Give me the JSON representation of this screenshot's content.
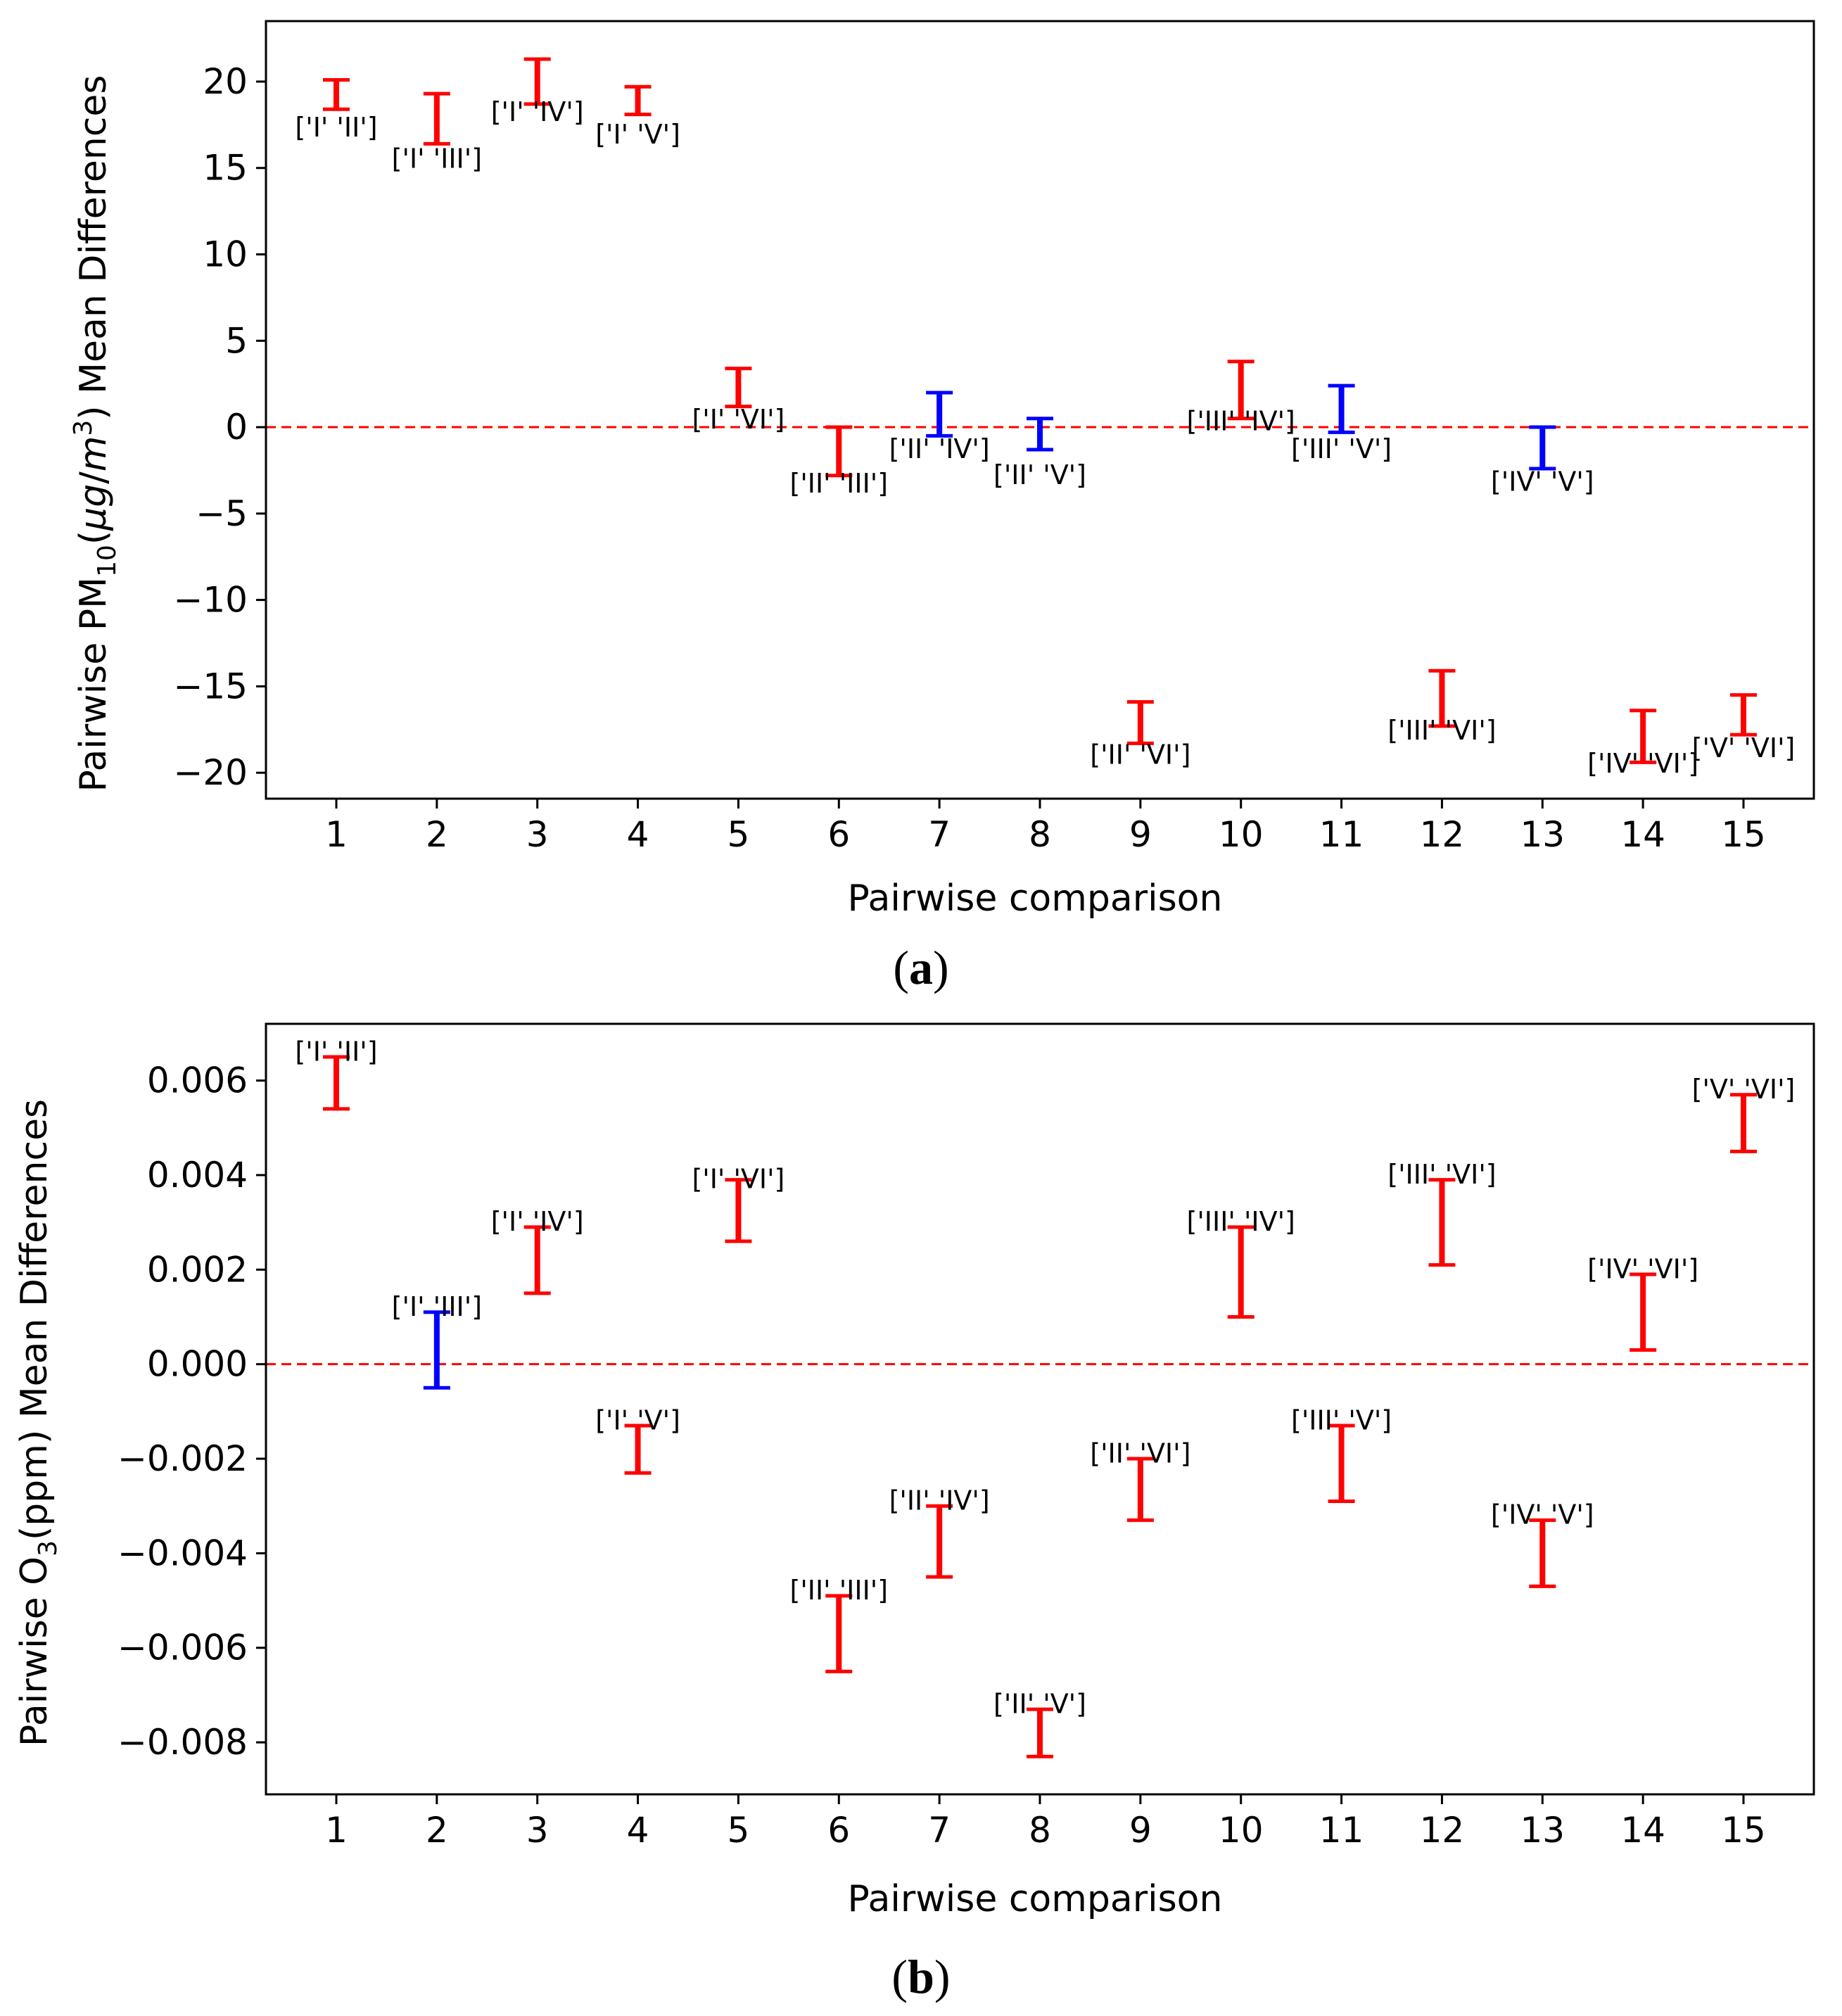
{
  "chart_data": [
    {
      "type": "errorbar",
      "panel_label": "a",
      "xlabel": "Pairwise comparison",
      "ylabel": {
        "prefix": "Pairwise PM",
        "subscript": "10",
        "unit_open": "(",
        "unit_mu": "μg",
        "unit_slash": "/",
        "unit_m": "m",
        "unit_exp": "3",
        "unit_close": ")",
        "suffix": " Mean Differences"
      },
      "ylim": [
        -21.5,
        23.5
      ],
      "yticks": [
        20,
        15,
        10,
        5,
        0,
        -5,
        -10,
        -15,
        -20
      ],
      "ytick_labels": [
        "20",
        "15",
        "10",
        "5",
        "0",
        "−5",
        "−10",
        "−15",
        "−20"
      ],
      "xlim": [
        0.3,
        15.7
      ],
      "xticks": [
        1,
        2,
        3,
        4,
        5,
        6,
        7,
        8,
        9,
        10,
        11,
        12,
        13,
        14,
        15
      ],
      "xtick_labels": [
        "1",
        "2",
        "3",
        "4",
        "5",
        "6",
        "7",
        "8",
        "9",
        "10",
        "11",
        "12",
        "13",
        "14",
        "15"
      ],
      "reference_line": 0,
      "series": [
        {
          "x": 1,
          "low": 18.4,
          "high": 20.1,
          "color": "#ff0000",
          "label": "['I' 'II']",
          "label_at": 17.3
        },
        {
          "x": 2,
          "low": 16.4,
          "high": 19.3,
          "color": "#ff0000",
          "label": "['I' 'III']",
          "label_at": 15.5
        },
        {
          "x": 3,
          "low": 18.7,
          "high": 21.3,
          "color": "#ff0000",
          "label": "['I' 'IV']",
          "label_at": 18.2
        },
        {
          "x": 4,
          "low": 18.1,
          "high": 19.7,
          "color": "#ff0000",
          "label": "['I' 'V']",
          "label_at": 16.9
        },
        {
          "x": 5,
          "low": 1.2,
          "high": 3.4,
          "color": "#ff0000",
          "label": "['I' 'VI']",
          "label_at": 0.4
        },
        {
          "x": 6,
          "low": -2.8,
          "high": 0.0,
          "color": "#ff0000",
          "label": "['II' 'III']",
          "label_at": -3.3
        },
        {
          "x": 7,
          "low": -0.5,
          "high": 2.0,
          "color": "#0000ff",
          "label": "['II' 'IV']",
          "label_at": -1.3
        },
        {
          "x": 8,
          "low": -1.3,
          "high": 0.5,
          "color": "#0000ff",
          "label": "['II' 'V']",
          "label_at": -2.8
        },
        {
          "x": 9,
          "low": -18.3,
          "high": -15.9,
          "color": "#ff0000",
          "label": "['II' 'VI']",
          "label_at": -19.0
        },
        {
          "x": 10,
          "low": 0.5,
          "high": 3.8,
          "color": "#ff0000",
          "label": "['III' 'IV']",
          "label_at": 0.3
        },
        {
          "x": 11,
          "low": -0.3,
          "high": 2.4,
          "color": "#0000ff",
          "label": "['III' 'V']",
          "label_at": -1.3
        },
        {
          "x": 12,
          "low": -17.3,
          "high": -14.1,
          "color": "#ff0000",
          "label": "['III' 'VI']",
          "label_at": -17.6
        },
        {
          "x": 13,
          "low": -2.4,
          "high": 0.0,
          "color": "#0000ff",
          "label": "['IV' 'V']",
          "label_at": -3.2
        },
        {
          "x": 14,
          "low": -19.4,
          "high": -16.4,
          "color": "#ff0000",
          "label": "['IV' 'VI']",
          "label_at": -19.5
        },
        {
          "x": 15,
          "low": -17.8,
          "high": -15.5,
          "color": "#ff0000",
          "label": "['V' 'VI']",
          "label_at": -18.6
        }
      ]
    },
    {
      "type": "errorbar",
      "panel_label": "b",
      "xlabel": "Pairwise comparison",
      "ylabel": {
        "prefix": "Pairwise O",
        "subscript": "3",
        "suffix": "(ppm) Mean Differences"
      },
      "ylim": [
        -0.0091,
        0.0072
      ],
      "yticks": [
        0.006,
        0.004,
        0.002,
        0.0,
        -0.002,
        -0.004,
        -0.006,
        -0.008
      ],
      "ytick_labels": [
        "0.006",
        "0.004",
        "0.002",
        "0.000",
        "−0.002",
        "−0.004",
        "−0.006",
        "−0.008"
      ],
      "xlim": [
        0.3,
        15.7
      ],
      "xticks": [
        1,
        2,
        3,
        4,
        5,
        6,
        7,
        8,
        9,
        10,
        11,
        12,
        13,
        14,
        15
      ],
      "xtick_labels": [
        "1",
        "2",
        "3",
        "4",
        "5",
        "6",
        "7",
        "8",
        "9",
        "10",
        "11",
        "12",
        "13",
        "14",
        "15"
      ],
      "reference_line": 0,
      "series": [
        {
          "x": 1,
          "low": 0.0054,
          "high": 0.0065,
          "color": "#ff0000",
          "label": "['I' 'II']",
          "label_at": 0.0066
        },
        {
          "x": 2,
          "low": -0.0005,
          "high": 0.0011,
          "color": "#0000ff",
          "label": "['I' 'III']",
          "label_at": 0.0012
        },
        {
          "x": 3,
          "low": 0.0015,
          "high": 0.0029,
          "color": "#ff0000",
          "label": "['I' 'IV']",
          "label_at": 0.003
        },
        {
          "x": 4,
          "low": -0.0023,
          "high": -0.0013,
          "color": "#ff0000",
          "label": "['I' 'V']",
          "label_at": -0.0012
        },
        {
          "x": 5,
          "low": 0.0026,
          "high": 0.0039,
          "color": "#ff0000",
          "label": "['I' 'VI']",
          "label_at": 0.0039
        },
        {
          "x": 6,
          "low": -0.0065,
          "high": -0.0049,
          "color": "#ff0000",
          "label": "['II' 'III']",
          "label_at": -0.0048
        },
        {
          "x": 7,
          "low": -0.0045,
          "high": -0.003,
          "color": "#ff0000",
          "label": "['II' 'IV']",
          "label_at": -0.0029
        },
        {
          "x": 8,
          "low": -0.0083,
          "high": -0.0073,
          "color": "#ff0000",
          "label": "['II' 'V']",
          "label_at": -0.0072
        },
        {
          "x": 9,
          "low": -0.0033,
          "high": -0.002,
          "color": "#ff0000",
          "label": "['II' 'VI']",
          "label_at": -0.0019
        },
        {
          "x": 10,
          "low": 0.001,
          "high": 0.0029,
          "color": "#ff0000",
          "label": "['III' 'IV']",
          "label_at": 0.003
        },
        {
          "x": 11,
          "low": -0.0029,
          "high": -0.0013,
          "color": "#ff0000",
          "label": "['III' 'V']",
          "label_at": -0.0012
        },
        {
          "x": 12,
          "low": 0.0021,
          "high": 0.0039,
          "color": "#ff0000",
          "label": "['III' 'VI']",
          "label_at": 0.004
        },
        {
          "x": 13,
          "low": -0.0047,
          "high": -0.0033,
          "color": "#ff0000",
          "label": "['IV' 'V']",
          "label_at": -0.0032
        },
        {
          "x": 14,
          "low": 0.0003,
          "high": 0.0019,
          "color": "#ff0000",
          "label": "['IV' 'VI']",
          "label_at": 0.002
        },
        {
          "x": 15,
          "low": 0.0045,
          "high": 0.0057,
          "color": "#ff0000",
          "label": "['V' 'VI']",
          "label_at": 0.0058
        }
      ]
    }
  ]
}
